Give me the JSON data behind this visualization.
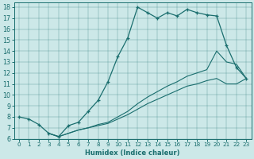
{
  "xlabel": "Humidex (Indice chaleur)",
  "bg_color": "#cce8e8",
  "line_color": "#1a6e6e",
  "xlim": [
    -0.5,
    23.5
  ],
  "ylim": [
    6,
    18.4
  ],
  "xticks": [
    0,
    1,
    2,
    3,
    4,
    5,
    6,
    7,
    8,
    9,
    10,
    11,
    12,
    13,
    14,
    15,
    16,
    17,
    18,
    19,
    20,
    21,
    22,
    23
  ],
  "yticks": [
    6,
    7,
    8,
    9,
    10,
    11,
    12,
    13,
    14,
    15,
    16,
    17,
    18
  ],
  "main_line": {
    "x": [
      0,
      1,
      2,
      3,
      4,
      5,
      6,
      7,
      8,
      9,
      10,
      11,
      12,
      13,
      14,
      15,
      16,
      17,
      18,
      19,
      20,
      21,
      22,
      23
    ],
    "y": [
      8,
      7.8,
      7.3,
      6.5,
      6.2,
      7.2,
      7.5,
      8.5,
      9.5,
      11.2,
      13.5,
      15.2,
      18.0,
      17.5,
      17.0,
      17.5,
      17.2,
      17.8,
      17.5,
      17.3,
      17.2,
      14.5,
      12.5,
      11.5
    ]
  },
  "line2": {
    "x": [
      3,
      4,
      5,
      6,
      7,
      8,
      9,
      10,
      11,
      12,
      13,
      14,
      15,
      16,
      17,
      18,
      19,
      20,
      21,
      22,
      23
    ],
    "y": [
      6.5,
      6.2,
      6.5,
      6.8,
      7.0,
      7.3,
      7.5,
      8.0,
      8.5,
      9.2,
      9.8,
      10.3,
      10.8,
      11.2,
      11.7,
      12.0,
      12.3,
      14.0,
      13.0,
      12.8,
      11.5
    ]
  },
  "line3": {
    "x": [
      3,
      4,
      5,
      6,
      7,
      8,
      9,
      10,
      11,
      12,
      13,
      14,
      15,
      16,
      17,
      18,
      19,
      20,
      21,
      22,
      23
    ],
    "y": [
      6.5,
      6.2,
      6.5,
      6.8,
      7.0,
      7.2,
      7.4,
      7.8,
      8.2,
      8.7,
      9.2,
      9.6,
      10.0,
      10.4,
      10.8,
      11.0,
      11.3,
      11.5,
      11.0,
      11.0,
      11.5
    ]
  }
}
